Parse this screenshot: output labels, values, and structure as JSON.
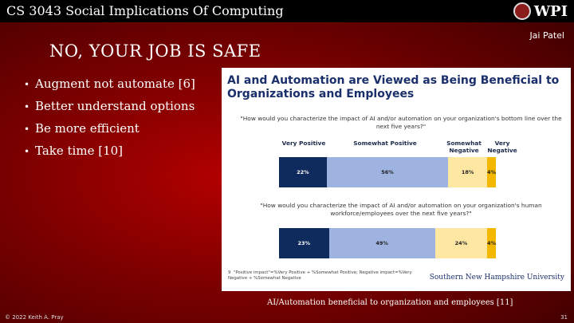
{
  "header": {
    "course_title": "CS 3043 Social Implications Of Computing",
    "logo_text": "WPI"
  },
  "author": "Jai Patel",
  "slide_title": "NO, YOUR JOB IS SAFE",
  "bullets": [
    "Augment not automate [6]",
    "Better understand options",
    "Be more efficient",
    "Take time [10]"
  ],
  "figure": {
    "title": "AI and Automation are Viewed as Being Beneficial to Organizations and Employees",
    "legend": [
      "Very Positive",
      "Somewhat Positive",
      "Somewhat Negative",
      "Very Negative"
    ],
    "legend_colors": [
      "#0f2a5c",
      "#9fb3e0",
      "#fde7a3",
      "#f5b800"
    ],
    "footnote": "\"Positive impact\"=%Very Positive + %Somewhat Positive; Negative impact=%Very Negative + %Somewhat Negative",
    "footnote_number": "9",
    "source": "Southern New Hampshire University"
  },
  "chart_data": {
    "type": "bar",
    "categories": [
      "Very Positive",
      "Somewhat Positive",
      "Somewhat Negative",
      "Very Negative"
    ],
    "series": [
      {
        "name": "\"How would you characterize the impact of AI and/or automation on your organization's bottom line over the next five years?\"",
        "values": [
          22,
          56,
          18,
          4
        ],
        "labels": [
          "22%",
          "56%",
          "18%",
          "4%"
        ]
      },
      {
        "name": "\"How would you characterize the impact of AI and/or automation on your organization's human workforce/employees over the next five years?\"",
        "values": [
          23,
          49,
          24,
          4
        ],
        "labels": [
          "23%",
          "49%",
          "24%",
          "4%"
        ]
      }
    ]
  },
  "caption": "AI/Automation beneficial to organization and employees [11]",
  "footer": {
    "copyright": "© 2022 Keith A. Pray",
    "page_number": "31"
  }
}
